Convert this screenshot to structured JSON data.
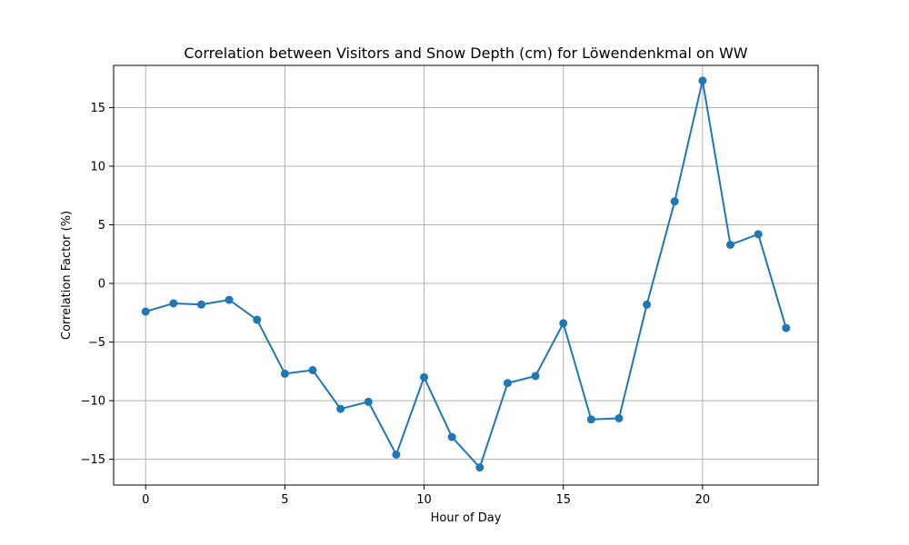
{
  "chart_data": {
    "type": "line",
    "title": "Correlation between Visitors and Snow Depth (cm) for Löwendenkmal on WW",
    "xlabel": "Hour of Day",
    "ylabel": "Correlation Factor (%)",
    "xlim": [
      -1.15,
      24.15
    ],
    "ylim": [
      -17.2,
      18.6
    ],
    "xticks": [
      0,
      5,
      10,
      15,
      20
    ],
    "yticks": [
      -15,
      -10,
      -5,
      0,
      5,
      10,
      15
    ],
    "grid": true,
    "series": [
      {
        "color": "#1f77b4",
        "marker": "circle",
        "x": [
          0,
          1,
          2,
          3,
          4,
          5,
          6,
          7,
          8,
          9,
          10,
          11,
          12,
          13,
          14,
          15,
          16,
          17,
          18,
          19,
          20,
          21,
          22,
          23
        ],
        "y": [
          -2.4,
          -1.7,
          -1.8,
          -1.4,
          -3.1,
          -7.7,
          -7.4,
          -10.7,
          -10.1,
          -14.6,
          -8.0,
          -13.1,
          -15.7,
          -8.5,
          -7.9,
          -3.4,
          -11.6,
          -11.5,
          -1.8,
          7.0,
          17.3,
          3.3,
          4.2,
          -3.8
        ]
      }
    ]
  }
}
